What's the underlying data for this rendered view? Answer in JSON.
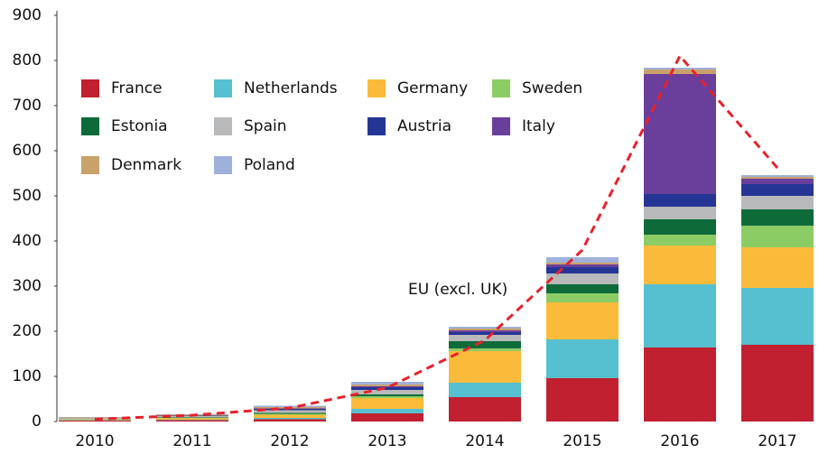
{
  "chart_data": {
    "type": "bar",
    "categories": [
      "2010",
      "2011",
      "2012",
      "2013",
      "2014",
      "2015",
      "2016",
      "2017"
    ],
    "ylim": [
      0,
      900
    ],
    "yticks": [
      0,
      100,
      200,
      300,
      400,
      500,
      600,
      700,
      800,
      900
    ],
    "stacked": true,
    "grid": false,
    "series": [
      {
        "name": "France",
        "color": "#c0202f",
        "values": [
          2,
          3,
          5,
          18,
          54,
          96,
          164,
          170
        ]
      },
      {
        "name": "Netherlands",
        "color": "#56bfd0",
        "values": [
          1,
          1,
          3,
          10,
          32,
          86,
          140,
          126
        ]
      },
      {
        "name": "Germany",
        "color": "#fbbb3a",
        "values": [
          1,
          3,
          7,
          24,
          70,
          82,
          86,
          90
        ]
      },
      {
        "name": "Sweden",
        "color": "#8ccc65",
        "values": [
          1,
          1,
          2,
          4,
          6,
          20,
          24,
          48
        ]
      },
      {
        "name": "Estonia",
        "color": "#0d6b3a",
        "values": [
          0,
          1,
          2,
          4,
          16,
          20,
          34,
          36
        ]
      },
      {
        "name": "Spain",
        "color": "#b8b9ba",
        "values": [
          2,
          3,
          6,
          10,
          14,
          24,
          28,
          30
        ]
      },
      {
        "name": "Austria",
        "color": "#253595",
        "values": [
          0,
          1,
          3,
          6,
          6,
          14,
          28,
          26
        ]
      },
      {
        "name": "Italy",
        "color": "#6a3f9c",
        "values": [
          0,
          0,
          1,
          2,
          4,
          6,
          266,
          12
        ]
      },
      {
        "name": "Denmark",
        "color": "#c9a16b",
        "values": [
          2,
          2,
          3,
          4,
          4,
          4,
          10,
          4
        ]
      },
      {
        "name": "Poland",
        "color": "#9fb1da",
        "values": [
          1,
          1,
          3,
          6,
          4,
          12,
          4,
          4
        ]
      }
    ],
    "line": {
      "type": "line",
      "name": "EU (excl. UK)",
      "color": "#e8212a",
      "values": [
        5,
        14,
        30,
        75,
        180,
        380,
        810,
        562
      ]
    }
  }
}
